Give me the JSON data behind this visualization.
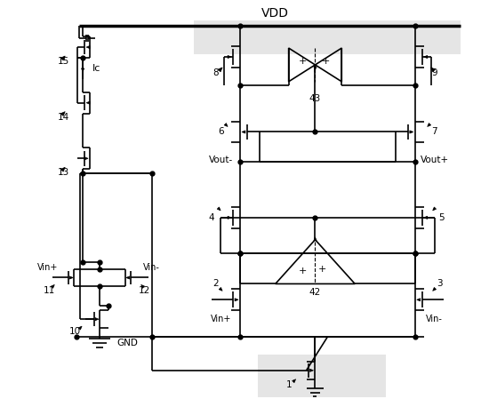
{
  "bg_color": "#ffffff",
  "line_color": "#000000",
  "lw": 1.2,
  "dot_size": 3.5,
  "figsize": [
    5.41,
    4.49
  ],
  "dpi": 100,
  "shade_color": "#cccccc",
  "shade_alpha": 0.5,
  "vdd_label": "VDD",
  "gnd_label": "GND",
  "ic_label": "Ic",
  "vout_minus": "Vout-",
  "vout_plus": "Vout+",
  "vin_plus": "Vin+",
  "vin_minus": "Vin-",
  "label_43": "43",
  "label_42": "42",
  "labels": {
    "1": "1",
    "2": "2",
    "3": "3",
    "4": "4",
    "5": "5",
    "6": "6",
    "7": "7",
    "8": "8",
    "9": "9",
    "10": "10",
    "11": "11",
    "12": "12",
    "13": "13",
    "14": "14",
    "15": "15"
  }
}
